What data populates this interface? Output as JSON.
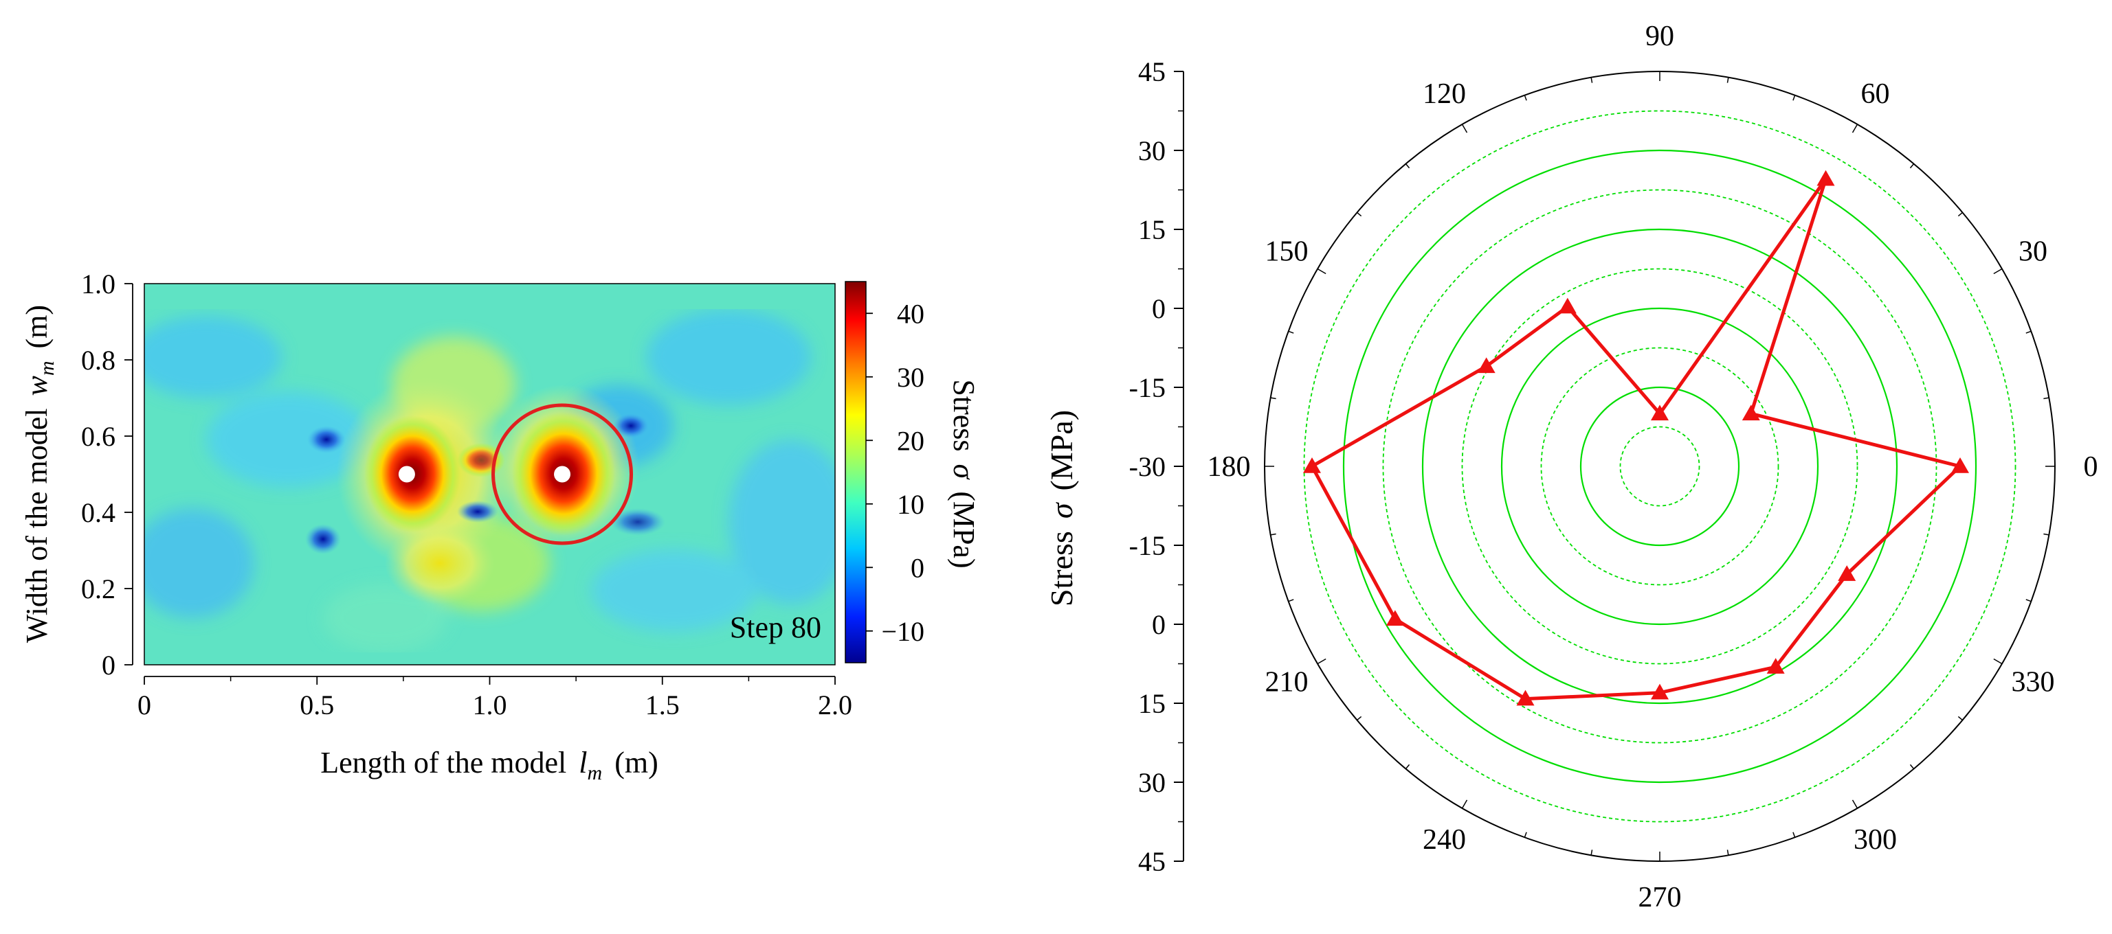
{
  "chart_data": [
    {
      "type": "heatmap",
      "title": "",
      "xlabel": "Length of the model",
      "xlabel_symbol": "l",
      "xlabel_sub": "m",
      "xlabel_unit": "(m)",
      "ylabel": "Width of the model",
      "ylabel_symbol": "w",
      "ylabel_sub": "m",
      "ylabel_unit": "(m)",
      "xlim": [
        0,
        2.0
      ],
      "ylim": [
        0,
        1.0
      ],
      "xticks": [
        0,
        0.5,
        1.0,
        1.5,
        2.0
      ],
      "xtick_labels": [
        "0",
        "0.5",
        "1.0",
        "1.5",
        "2.0"
      ],
      "yticks": [
        0,
        0.2,
        0.4,
        0.6,
        0.8,
        1.0
      ],
      "ytick_labels": [
        "0",
        "0.2",
        "0.4",
        "0.6",
        "0.8",
        "1.0"
      ],
      "colorbar": {
        "label": "Stress",
        "symbol": "σ",
        "unit": "(MPa)",
        "range": [
          -15,
          45
        ],
        "ticks": [
          -10,
          0,
          10,
          20,
          30,
          40
        ],
        "tick_labels": [
          "−10",
          "0",
          "10",
          "20",
          "30",
          "40"
        ]
      },
      "holes": [
        {
          "x": 0.76,
          "y": 0.5
        },
        {
          "x": 1.21,
          "y": 0.5
        }
      ],
      "highlight_circle": {
        "x": 1.21,
        "y": 0.5,
        "radius": 0.2,
        "color": "#e02020"
      },
      "annotation": "Step 80",
      "annotation_color": "#e03030"
    },
    {
      "type": "polar",
      "ylabel": "Stress",
      "ylabel_symbol": "σ",
      "ylabel_unit": "(MPa)",
      "radial_axis": {
        "labels_top": [
          "45",
          "30",
          "15",
          "0",
          "-15",
          "-30"
        ],
        "labels_bottom": [
          "-15",
          "0",
          "15",
          "30",
          "45"
        ],
        "range": [
          -30,
          45
        ]
      },
      "angle_ticks": [
        0,
        30,
        60,
        90,
        120,
        150,
        180,
        210,
        240,
        270,
        300,
        330
      ],
      "angle_labels": [
        "0",
        "30",
        "60",
        "90",
        "120",
        "150",
        "180",
        "210",
        "240",
        "270",
        "300",
        "330"
      ],
      "grid_color": "#00dd00",
      "series": [
        {
          "name": "Stress",
          "color": "#ee1111",
          "marker": "triangle",
          "angles": [
            0,
            30,
            60,
            90,
            120,
            150,
            180,
            210,
            240,
            270,
            300,
            330
          ],
          "values": [
            27,
            -10,
            33,
            -20,
            5,
            8,
            36,
            28,
            21,
            13,
            14,
            11
          ]
        }
      ]
    }
  ]
}
